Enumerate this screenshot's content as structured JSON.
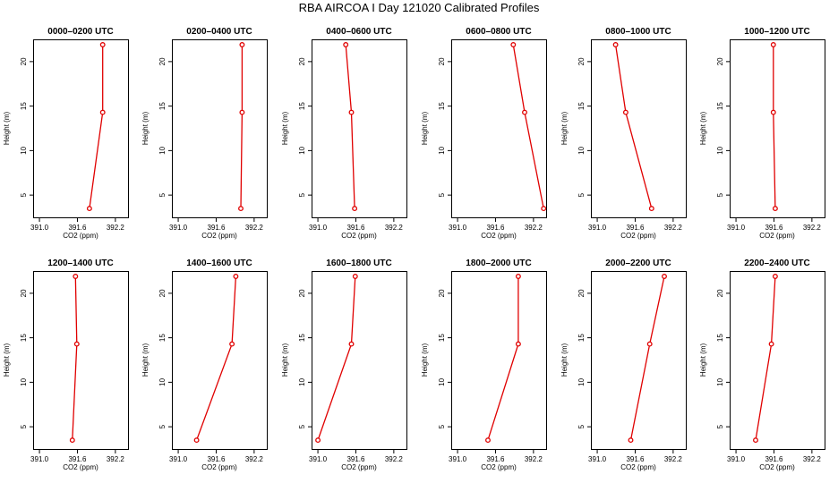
{
  "title": "RBA AIRCOA I  Day 121020  Calibrated Profiles",
  "colors": {
    "series": "#e00000",
    "axis": "#000000"
  },
  "chart_data": [
    {
      "type": "line",
      "title": "0000–0200 UTC",
      "xlabel": "CO2 (ppm)",
      "ylabel": "Height (m)",
      "xlim": [
        390.9,
        392.4
      ],
      "ylim": [
        2.5,
        22.5
      ],
      "xticks": [
        391.0,
        391.6,
        392.2
      ],
      "yticks": [
        5,
        10,
        15,
        20
      ],
      "x": [
        391.79,
        392.0,
        392.0
      ],
      "y": [
        3.5,
        14.3,
        21.9
      ]
    },
    {
      "type": "line",
      "title": "0200–0400 UTC",
      "xlabel": "CO2 (ppm)",
      "ylabel": "Height (m)",
      "xlim": [
        390.9,
        392.4
      ],
      "ylim": [
        2.5,
        22.5
      ],
      "xticks": [
        391.0,
        391.6,
        392.2
      ],
      "yticks": [
        5,
        10,
        15,
        20
      ],
      "x": [
        391.99,
        392.01,
        392.01
      ],
      "y": [
        3.5,
        14.3,
        21.9
      ]
    },
    {
      "type": "line",
      "title": "0400–0600 UTC",
      "xlabel": "CO2 (ppm)",
      "ylabel": "Height (m)",
      "xlim": [
        390.9,
        392.4
      ],
      "ylim": [
        2.5,
        22.5
      ],
      "xticks": [
        391.0,
        391.6,
        392.2
      ],
      "yticks": [
        5,
        10,
        15,
        20
      ],
      "x": [
        391.58,
        391.53,
        391.44
      ],
      "y": [
        3.5,
        14.3,
        21.9
      ]
    },
    {
      "type": "line",
      "title": "0600–0800 UTC",
      "xlabel": "CO2 (ppm)",
      "ylabel": "Height (m)",
      "xlim": [
        390.9,
        392.4
      ],
      "ylim": [
        2.5,
        22.5
      ],
      "xticks": [
        391.0,
        391.6,
        392.2
      ],
      "yticks": [
        5,
        10,
        15,
        20
      ],
      "x": [
        392.36,
        392.06,
        391.88
      ],
      "y": [
        3.5,
        14.3,
        21.9
      ]
    },
    {
      "type": "line",
      "title": "0800–1000 UTC",
      "xlabel": "CO2 (ppm)",
      "ylabel": "Height (m)",
      "xlim": [
        390.9,
        392.4
      ],
      "ylim": [
        2.5,
        22.5
      ],
      "xticks": [
        391.0,
        391.6,
        392.2
      ],
      "yticks": [
        5,
        10,
        15,
        20
      ],
      "x": [
        391.86,
        391.45,
        391.29
      ],
      "y": [
        3.5,
        14.3,
        21.9
      ]
    },
    {
      "type": "line",
      "title": "1000–1200 UTC",
      "xlabel": "CO2 (ppm)",
      "ylabel": "Height (m)",
      "xlim": [
        390.9,
        392.4
      ],
      "ylim": [
        2.5,
        22.5
      ],
      "xticks": [
        391.0,
        391.6,
        392.2
      ],
      "yticks": [
        5,
        10,
        15,
        20
      ],
      "x": [
        391.62,
        391.59,
        391.59
      ],
      "y": [
        3.5,
        14.3,
        21.9
      ]
    },
    {
      "type": "line",
      "title": "1200–1400 UTC",
      "xlabel": "CO2 (ppm)",
      "ylabel": "Height (m)",
      "xlim": [
        390.9,
        392.4
      ],
      "ylim": [
        2.5,
        22.5
      ],
      "xticks": [
        391.0,
        391.6,
        392.2
      ],
      "yticks": [
        5,
        10,
        15,
        20
      ],
      "x": [
        391.52,
        391.59,
        391.57
      ],
      "y": [
        3.5,
        14.3,
        21.9
      ]
    },
    {
      "type": "line",
      "title": "1400–1600 UTC",
      "xlabel": "CO2 (ppm)",
      "ylabel": "Height (m)",
      "xlim": [
        390.9,
        392.4
      ],
      "ylim": [
        2.5,
        22.5
      ],
      "xticks": [
        391.0,
        391.6,
        392.2
      ],
      "yticks": [
        5,
        10,
        15,
        20
      ],
      "x": [
        391.29,
        391.85,
        391.91
      ],
      "y": [
        3.5,
        14.3,
        21.9
      ]
    },
    {
      "type": "line",
      "title": "1600–1800 UTC",
      "xlabel": "CO2 (ppm)",
      "ylabel": "Height (m)",
      "xlim": [
        390.9,
        392.4
      ],
      "ylim": [
        2.5,
        22.5
      ],
      "xticks": [
        391.0,
        391.6,
        392.2
      ],
      "yticks": [
        5,
        10,
        15,
        20
      ],
      "x": [
        391.0,
        391.53,
        391.59
      ],
      "y": [
        3.5,
        14.3,
        21.9
      ]
    },
    {
      "type": "line",
      "title": "1800–2000 UTC",
      "xlabel": "CO2 (ppm)",
      "ylabel": "Height (m)",
      "xlim": [
        390.9,
        392.4
      ],
      "ylim": [
        2.5,
        22.5
      ],
      "xticks": [
        391.0,
        391.6,
        392.2
      ],
      "yticks": [
        5,
        10,
        15,
        20
      ],
      "x": [
        391.48,
        391.96,
        391.96
      ],
      "y": [
        3.5,
        14.3,
        21.9
      ]
    },
    {
      "type": "line",
      "title": "2000–2200 UTC",
      "xlabel": "CO2 (ppm)",
      "ylabel": "Height (m)",
      "xlim": [
        390.9,
        392.4
      ],
      "ylim": [
        2.5,
        22.5
      ],
      "xticks": [
        391.0,
        391.6,
        392.2
      ],
      "yticks": [
        5,
        10,
        15,
        20
      ],
      "x": [
        391.53,
        391.83,
        392.06
      ],
      "y": [
        3.5,
        14.3,
        21.9
      ]
    },
    {
      "type": "line",
      "title": "2200–2400 UTC",
      "xlabel": "CO2 (ppm)",
      "ylabel": "Height (m)",
      "xlim": [
        390.9,
        392.4
      ],
      "ylim": [
        2.5,
        22.5
      ],
      "xticks": [
        391.0,
        391.6,
        392.2
      ],
      "yticks": [
        5,
        10,
        15,
        20
      ],
      "x": [
        391.31,
        391.56,
        391.62
      ],
      "y": [
        3.5,
        14.3,
        21.9
      ]
    }
  ]
}
